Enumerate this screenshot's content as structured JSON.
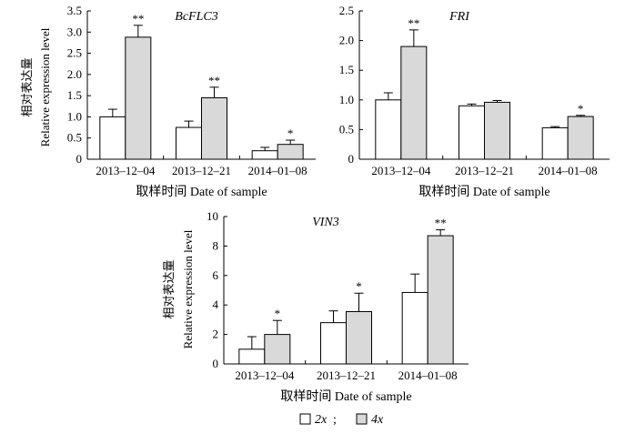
{
  "legend": {
    "entries": [
      {
        "label": "2x",
        "color": "#ffffff"
      },
      {
        "label": "4x",
        "color": "#d9d9d9"
      }
    ],
    "separator": ";"
  },
  "colors": {
    "axis": "#000000",
    "bar_2x": "#ffffff",
    "bar_4x": "#d9d9d9"
  },
  "chart_data": [
    {
      "type": "bar",
      "title": "BcFLC3",
      "xlabel": "取样时间 Date of sample",
      "ylabel_cn": "相对表达量",
      "ylabel_en": "Relative expression level",
      "ylim": [
        0,
        3.5
      ],
      "yticks": [
        "0",
        "0.5",
        "1.0",
        "1.5",
        "2.0",
        "2.5",
        "3.0",
        "3.5"
      ],
      "categories": [
        "2013–12–04",
        "2013–12–21",
        "2014–01–08"
      ],
      "series": [
        {
          "name": "2x",
          "values": [
            1.0,
            0.75,
            0.2
          ],
          "errors": [
            0.18,
            0.15,
            0.08
          ]
        },
        {
          "name": "4x",
          "values": [
            2.88,
            1.45,
            0.35
          ],
          "errors": [
            0.28,
            0.25,
            0.1
          ]
        }
      ],
      "significance": [
        "**",
        "**",
        "*"
      ]
    },
    {
      "type": "bar",
      "title": "FRI",
      "xlabel": "取样时间 Date of sample",
      "ylabel_cn": "",
      "ylabel_en": "",
      "ylim": [
        0,
        2.5
      ],
      "yticks": [
        "0",
        "0.5",
        "1.0",
        "1.5",
        "2.0",
        "2.5"
      ],
      "categories": [
        "2013–12–04",
        "2013–12–21",
        "2014–01–08"
      ],
      "series": [
        {
          "name": "2x",
          "values": [
            1.0,
            0.9,
            0.53
          ],
          "errors": [
            0.12,
            0.03,
            0.02
          ]
        },
        {
          "name": "4x",
          "values": [
            1.9,
            0.96,
            0.72
          ],
          "errors": [
            0.28,
            0.03,
            0.02
          ]
        }
      ],
      "significance": [
        "**",
        "",
        "*"
      ]
    },
    {
      "type": "bar",
      "title": "VIN3",
      "xlabel": "取样时间 Date of sample",
      "ylabel_cn": "相对表达量",
      "ylabel_en": "Relative expression level",
      "ylim": [
        0,
        10
      ],
      "yticks": [
        "0",
        "2",
        "4",
        "6",
        "8",
        "10"
      ],
      "categories": [
        "2013–12–04",
        "2013–12–21",
        "2014–01–08"
      ],
      "series": [
        {
          "name": "2x",
          "values": [
            1.0,
            2.8,
            4.85
          ],
          "errors": [
            0.85,
            0.8,
            1.25
          ]
        },
        {
          "name": "4x",
          "values": [
            2.0,
            3.55,
            8.7
          ],
          "errors": [
            0.95,
            1.25,
            0.4
          ]
        }
      ],
      "significance": [
        "*",
        "*",
        "**"
      ]
    }
  ]
}
